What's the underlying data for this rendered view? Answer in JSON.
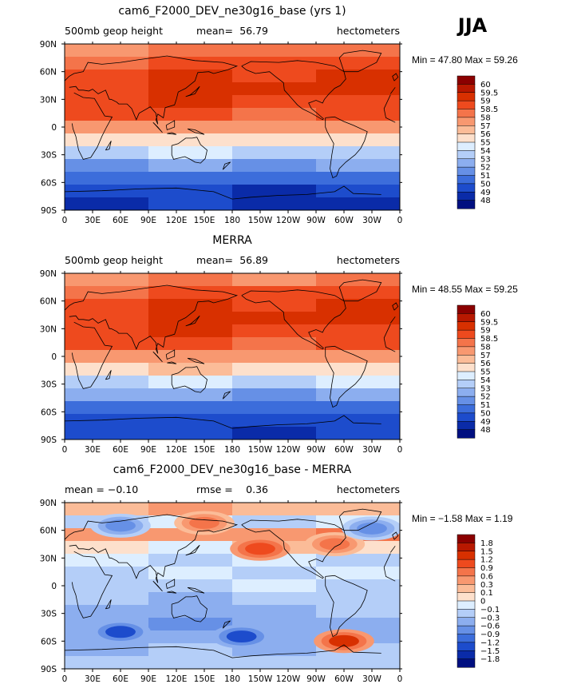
{
  "season": "JJA",
  "chart_data": [
    {
      "type": "heatmap",
      "title": "cam6_F2000_DEV_ne30g16_base (yrs 1)",
      "left_label": "500mb geop height",
      "mean_label": "mean=",
      "mean_value": "56.79",
      "units": "hectometers",
      "min_max_text": "Min =  47.80 Max =  59.26",
      "levels": [
        "60",
        "59.5",
        "59",
        "58.5",
        "58",
        "57",
        "56",
        "55",
        "54",
        "53",
        "52",
        "51",
        "50",
        "49",
        "48"
      ],
      "colors": [
        "#8b0000",
        "#b81800",
        "#d83000",
        "#ee4a1e",
        "#f4744a",
        "#f89870",
        "#fbbc98",
        "#fde0cc",
        "#ddeeff",
        "#b4cef8",
        "#8caeef",
        "#6690e6",
        "#3c6ddb",
        "#1d4ccc",
        "#0a2ba8",
        "#000f80"
      ],
      "band_levels": [
        [
          57.9,
          58.3,
          58.0,
          58.2
        ],
        [
          58.4,
          58.8,
          58.6,
          58.7
        ],
        [
          58.8,
          59.1,
          58.9,
          59.0
        ],
        [
          58.9,
          59.1,
          59.0,
          59.1
        ],
        [
          58.8,
          59.0,
          58.9,
          58.9
        ],
        [
          58.5,
          58.6,
          58.4,
          58.6
        ],
        [
          57.4,
          57.6,
          57.3,
          57.5
        ],
        [
          55.6,
          55.9,
          55.5,
          55.8
        ],
        [
          53.6,
          54.0,
          53.5,
          53.8
        ],
        [
          51.7,
          52.2,
          51.6,
          52.0
        ],
        [
          50.2,
          50.6,
          50.0,
          50.4
        ],
        [
          49.2,
          49.5,
          48.9,
          49.3
        ],
        [
          48.8,
          49.0,
          48.3,
          48.9
        ]
      ],
      "x_ticks": [
        "0",
        "30E",
        "60E",
        "90E",
        "120E",
        "150E",
        "180",
        "150W",
        "120W",
        "90W",
        "60W",
        "30W",
        "0"
      ],
      "y_ticks": [
        "90N",
        "60N",
        "30N",
        "0",
        "30S",
        "60S",
        "90S"
      ]
    },
    {
      "type": "heatmap",
      "title": "MERRA",
      "left_label": "500mb geop height",
      "mean_label": "mean=",
      "mean_value": "56.89",
      "units": "hectometers",
      "min_max_text": "Min =  48.55 Max =  59.25",
      "levels": [
        "60",
        "59.5",
        "59",
        "58.5",
        "58",
        "57",
        "56",
        "55",
        "54",
        "53",
        "52",
        "51",
        "50",
        "49",
        "48"
      ],
      "colors": [
        "#8b0000",
        "#b81800",
        "#d83000",
        "#ee4a1e",
        "#f4744a",
        "#f89870",
        "#fbbc98",
        "#fde0cc",
        "#ddeeff",
        "#b4cef8",
        "#8caeef",
        "#6690e6",
        "#3c6ddb",
        "#1d4ccc",
        "#0a2ba8",
        "#000f80"
      ],
      "band_levels": [
        [
          57.8,
          58.2,
          57.9,
          58.1
        ],
        [
          58.4,
          58.8,
          58.6,
          58.7
        ],
        [
          58.8,
          59.1,
          58.9,
          59.0
        ],
        [
          58.9,
          59.1,
          59.0,
          59.1
        ],
        [
          58.8,
          59.0,
          58.9,
          58.9
        ],
        [
          58.5,
          58.6,
          58.4,
          58.6
        ],
        [
          57.5,
          57.7,
          57.4,
          57.6
        ],
        [
          55.8,
          56.0,
          55.7,
          55.9
        ],
        [
          53.9,
          54.2,
          53.8,
          54.1
        ],
        [
          52.0,
          52.4,
          51.9,
          52.2
        ],
        [
          50.5,
          50.9,
          50.3,
          50.7
        ],
        [
          49.5,
          49.8,
          49.2,
          49.6
        ],
        [
          49.1,
          49.3,
          48.8,
          49.2
        ]
      ],
      "x_ticks": [
        "0",
        "30E",
        "60E",
        "90E",
        "120E",
        "150E",
        "180",
        "150W",
        "120W",
        "90W",
        "60W",
        "30W",
        "0"
      ],
      "y_ticks": [
        "90N",
        "60N",
        "30N",
        "0",
        "30S",
        "60S",
        "90S"
      ]
    },
    {
      "type": "heatmap",
      "title": "cam6_F2000_DEV_ne30g16_base - MERRA",
      "left_label": "mean =   −0.10",
      "mean_label": "rmse =",
      "mean_value": "0.36",
      "units": "hectometers",
      "min_max_text": "Min =  −1.58 Max =    1.19",
      "levels": [
        "1.8",
        "1.5",
        "1.2",
        "0.9",
        "0.6",
        "0.3",
        "0.1",
        "0",
        "−0.1",
        "−0.3",
        "−0.6",
        "−0.9",
        "−1.2",
        "−1.5",
        "−1.8"
      ],
      "colors": [
        "#8b0000",
        "#b81800",
        "#d83000",
        "#ee4a1e",
        "#f4744a",
        "#f89870",
        "#fbbc98",
        "#fde0cc",
        "#ddeeff",
        "#b4cef8",
        "#8caeef",
        "#6690e6",
        "#3c6ddb",
        "#1d4ccc",
        "#0a2ba8",
        "#000f80"
      ],
      "band_levels": [
        [
          0.2,
          0.3,
          0.1,
          0.2
        ],
        [
          -0.2,
          -0.1,
          -0.3,
          -0.1
        ],
        [
          0.3,
          0.5,
          0.4,
          0.6
        ],
        [
          0.0,
          -0.1,
          0.1,
          0.0
        ],
        [
          -0.1,
          -0.2,
          -0.1,
          -0.2
        ],
        [
          -0.2,
          -0.1,
          -0.2,
          -0.1
        ],
        [
          -0.2,
          -0.3,
          -0.1,
          -0.2
        ],
        [
          -0.3,
          -0.4,
          -0.2,
          -0.3
        ],
        [
          -0.4,
          -0.6,
          -0.4,
          -0.3
        ],
        [
          -0.6,
          -0.9,
          -0.5,
          -0.4
        ],
        [
          -0.5,
          -0.6,
          -0.4,
          -0.4
        ],
        [
          -0.4,
          -0.3,
          -0.5,
          -0.3
        ],
        [
          -0.3,
          -0.3,
          -0.2,
          -0.3
        ]
      ],
      "x_ticks": [
        "0",
        "30E",
        "60E",
        "90E",
        "120E",
        "150E",
        "180",
        "150W",
        "120W",
        "90W",
        "60W",
        "30W",
        "0"
      ],
      "y_ticks": [
        "90N",
        "60N",
        "30N",
        "0",
        "30S",
        "60S",
        "90S"
      ],
      "anomalies": [
        {
          "lon": 60,
          "lat": -50,
          "value": -1.2
        },
        {
          "lon": 190,
          "lat": -55,
          "value": -1.2
        },
        {
          "lon": 300,
          "lat": -60,
          "value": 1.2
        },
        {
          "lon": 210,
          "lat": 40,
          "value": 0.9
        },
        {
          "lon": 290,
          "lat": 45,
          "value": 0.6
        },
        {
          "lon": 150,
          "lat": 68,
          "value": 0.6
        },
        {
          "lon": 60,
          "lat": 65,
          "value": -0.6
        },
        {
          "lon": 330,
          "lat": 62,
          "value": -0.6
        }
      ]
    }
  ]
}
